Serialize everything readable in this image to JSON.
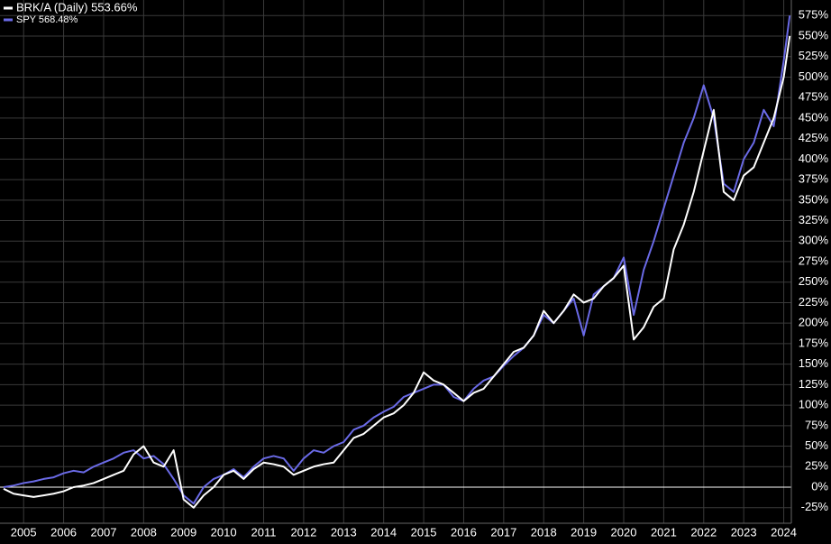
{
  "chart_data": {
    "type": "line",
    "x": [
      2004.5,
      2004.75,
      2005,
      2005.25,
      2005.5,
      2005.75,
      2006,
      2006.25,
      2006.5,
      2006.75,
      2007,
      2007.25,
      2007.5,
      2007.75,
      2008,
      2008.25,
      2008.5,
      2008.75,
      2009,
      2009.25,
      2009.5,
      2009.75,
      2010,
      2010.25,
      2010.5,
      2010.75,
      2011,
      2011.25,
      2011.5,
      2011.75,
      2012,
      2012.25,
      2012.5,
      2012.75,
      2013,
      2013.25,
      2013.5,
      2013.75,
      2014,
      2014.25,
      2014.5,
      2014.75,
      2015,
      2015.25,
      2015.5,
      2015.75,
      2016,
      2016.25,
      2016.5,
      2016.75,
      2017,
      2017.25,
      2017.5,
      2017.75,
      2018,
      2018.25,
      2018.5,
      2018.75,
      2019,
      2019.25,
      2019.5,
      2019.75,
      2020,
      2020.25,
      2020.5,
      2020.75,
      2021,
      2021.25,
      2021.5,
      2021.75,
      2022,
      2022.25,
      2022.5,
      2022.75,
      2023,
      2023.25,
      2023.5,
      2023.75,
      2024,
      2024.15
    ],
    "series": [
      {
        "name": "SPY 568.48%",
        "color": "#6a6ae6",
        "values": [
          0,
          2,
          5,
          7,
          10,
          12,
          17,
          20,
          18,
          25,
          30,
          35,
          42,
          45,
          35,
          38,
          28,
          10,
          -10,
          -20,
          0,
          10,
          15,
          22,
          12,
          25,
          35,
          38,
          35,
          20,
          35,
          45,
          42,
          50,
          55,
          70,
          75,
          85,
          92,
          98,
          110,
          115,
          120,
          125,
          125,
          110,
          105,
          120,
          130,
          135,
          148,
          160,
          170,
          185,
          210,
          200,
          215,
          230,
          185,
          235,
          245,
          255,
          280,
          210,
          265,
          300,
          340,
          380,
          420,
          450,
          490,
          450,
          370,
          360,
          400,
          420,
          460,
          440,
          520,
          575
        ]
      },
      {
        "name": "BRK/A (Daily) 553.66%",
        "color": "#ffffff",
        "values": [
          -2,
          -8,
          -10,
          -12,
          -10,
          -8,
          -5,
          0,
          2,
          5,
          10,
          15,
          20,
          40,
          50,
          30,
          25,
          45,
          -15,
          -25,
          -10,
          0,
          15,
          20,
          10,
          22,
          30,
          28,
          25,
          15,
          20,
          25,
          28,
          30,
          45,
          60,
          65,
          75,
          85,
          90,
          100,
          115,
          140,
          130,
          125,
          115,
          105,
          115,
          120,
          135,
          150,
          165,
          170,
          185,
          215,
          200,
          215,
          235,
          225,
          230,
          245,
          255,
          270,
          180,
          195,
          220,
          230,
          290,
          320,
          360,
          410,
          460,
          360,
          350,
          380,
          390,
          420,
          450,
          500,
          550
        ]
      }
    ],
    "xlim": [
      2004.41,
      2024.19
    ],
    "xticks": [
      2005,
      2006,
      2007,
      2008,
      2009,
      2010,
      2011,
      2012,
      2013,
      2014,
      2015,
      2016,
      2017,
      2018,
      2019,
      2020,
      2021,
      2022,
      2023,
      2024
    ],
    "ylim": [
      -44,
      594
    ],
    "yticks": [
      {
        "value": -25,
        "label": "-25%"
      },
      {
        "value": 0,
        "label": "0%"
      },
      {
        "value": 25,
        "label": "25%"
      },
      {
        "value": 50,
        "label": "50%"
      },
      {
        "value": 75,
        "label": "75%"
      },
      {
        "value": 100,
        "label": "100%"
      },
      {
        "value": 125,
        "label": "125%"
      },
      {
        "value": 150,
        "label": "150%"
      },
      {
        "value": 175,
        "label": "175%"
      },
      {
        "value": 200,
        "label": "200%"
      },
      {
        "value": 225,
        "label": "225%"
      },
      {
        "value": 250,
        "label": "250%"
      },
      {
        "value": 275,
        "label": "275%"
      },
      {
        "value": 300,
        "label": "300%"
      },
      {
        "value": 325,
        "label": "325%"
      },
      {
        "value": 350,
        "label": "350%"
      },
      {
        "value": 375,
        "label": "375%"
      },
      {
        "value": 400,
        "label": "400%"
      },
      {
        "value": 425,
        "label": "425%"
      },
      {
        "value": 450,
        "label": "450%"
      },
      {
        "value": 475,
        "label": "475%"
      },
      {
        "value": 500,
        "label": "500%"
      },
      {
        "value": 525,
        "label": "525%"
      },
      {
        "value": 550,
        "label": "550%"
      },
      {
        "value": 575,
        "label": "575%"
      }
    ],
    "grid": true
  }
}
